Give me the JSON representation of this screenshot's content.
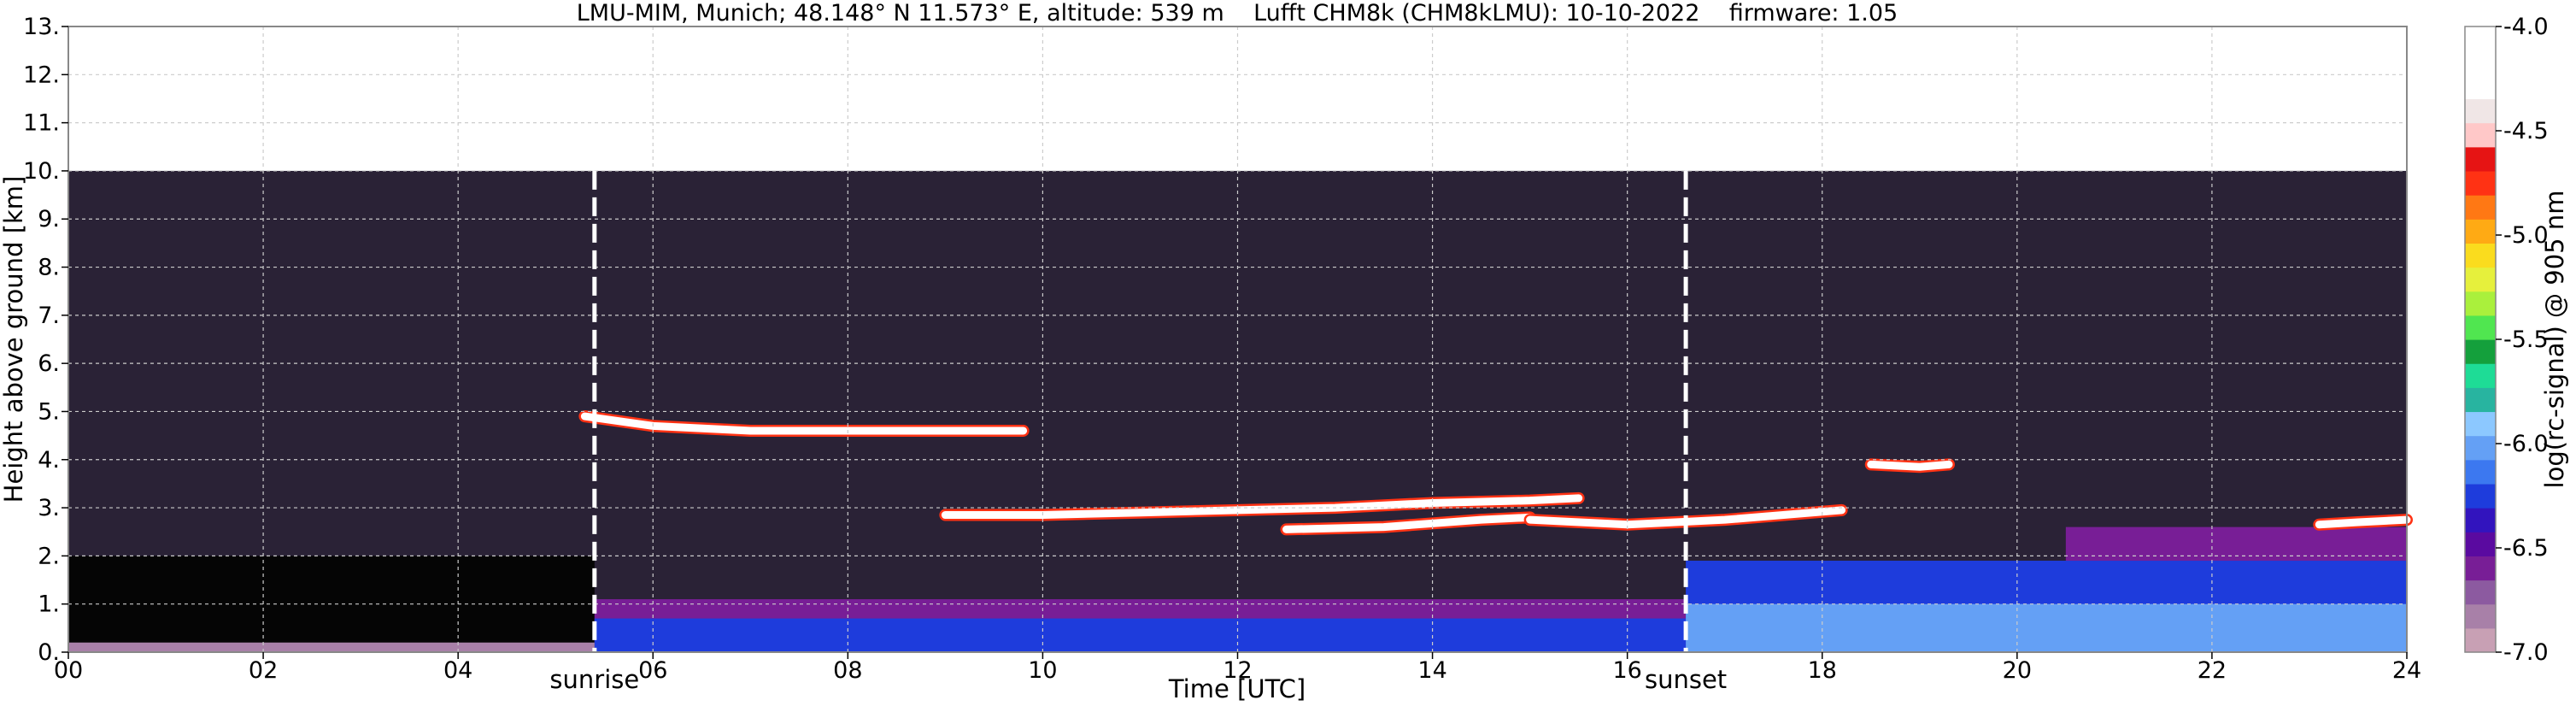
{
  "chart_data": {
    "type": "heatmap",
    "title": "LMU-MIM, Munich; 48.148° N 11.573° E, altitude: 539 m    Lufft CHM8k (CHM8kLMU): 10-10-2022    firmware: 1.05",
    "xlabel": "Time [UTC]",
    "ylabel": "Height above ground [km]",
    "xlim": [
      0,
      24
    ],
    "ylim": [
      0,
      13
    ],
    "x_ticks": [
      0,
      2,
      4,
      6,
      8,
      10,
      12,
      14,
      16,
      18,
      20,
      22,
      24
    ],
    "x_tick_labels": [
      "00",
      "02",
      "04",
      "06",
      "08",
      "10",
      "12",
      "14",
      "16",
      "18",
      "20",
      "22",
      "24"
    ],
    "y_ticks": [
      0,
      1,
      2,
      3,
      4,
      5,
      6,
      7,
      8,
      9,
      10,
      11,
      12,
      13
    ],
    "y_tick_labels": [
      "0.",
      "1.",
      "2.",
      "3.",
      "4.",
      "5.",
      "6.",
      "7.",
      "8.",
      "9.",
      "10.",
      "11.",
      "12.",
      "13."
    ],
    "grid": true,
    "data_top_km": 10,
    "markers": [
      {
        "label": "sunrise",
        "time": 5.4
      },
      {
        "label": "sunset",
        "time": 16.6
      }
    ],
    "colorbar": {
      "label": "log(rc-signal) @ 905 nm",
      "range": [
        -7.0,
        -4.0
      ],
      "ticks": [
        -4.0,
        -4.5,
        -5.0,
        -5.5,
        -6.0,
        -6.5,
        -7.0
      ],
      "tick_labels": [
        "-4.0",
        "-4.5",
        "-5.0",
        "-5.5",
        "-6.0",
        "-6.5",
        "-7.0"
      ],
      "colors": [
        "#c8a0b4",
        "#a880a8",
        "#8c5aa0",
        "#781e96",
        "#5a0aa0",
        "#3214be",
        "#1e3cdc",
        "#3c78f0",
        "#64a0f5",
        "#8cc8ff",
        "#28b4a0",
        "#1edc96",
        "#14a03c",
        "#50e650",
        "#aaf03c",
        "#e6f03c",
        "#fadc1e",
        "#ffaa14",
        "#ff7814",
        "#ff3214",
        "#e61414",
        "#ffc8c8",
        "#f0e6e6",
        "#ffffff",
        "#ffffff",
        "#ffffff"
      ]
    },
    "features": [
      {
        "name": "cloud layer",
        "t": [
          5.3,
          6.0,
          7.0,
          8.0,
          9.0,
          9.8
        ],
        "height_km": [
          4.9,
          4.7,
          4.6,
          4.6,
          4.6,
          4.6
        ],
        "color": "#ffffff"
      },
      {
        "name": "cloud layer",
        "t": [
          9.0,
          10.0,
          11.0,
          12.0,
          13.0,
          14.0,
          15.0,
          15.5
        ],
        "height_km": [
          2.85,
          2.85,
          2.9,
          2.95,
          3.0,
          3.1,
          3.15,
          3.2
        ],
        "color": "#ffffff"
      },
      {
        "name": "cloud layer",
        "t": [
          12.5,
          13.5,
          14.5,
          15.0
        ],
        "height_km": [
          2.55,
          2.6,
          2.75,
          2.8
        ],
        "color": "#ffffff"
      },
      {
        "name": "cloud layer",
        "t": [
          15.0,
          16.0,
          17.0,
          18.2
        ],
        "height_km": [
          2.75,
          2.65,
          2.75,
          2.95
        ],
        "color": "#ffffff"
      },
      {
        "name": "cloud layer",
        "t": [
          18.5,
          19.0,
          19.3
        ],
        "height_km": [
          3.9,
          3.85,
          3.9
        ],
        "color": "#ffffff"
      },
      {
        "name": "cloud layer",
        "t": [
          23.1,
          23.5,
          24.0
        ],
        "height_km": [
          2.65,
          2.7,
          2.75
        ],
        "color": "#ffffff"
      }
    ]
  }
}
